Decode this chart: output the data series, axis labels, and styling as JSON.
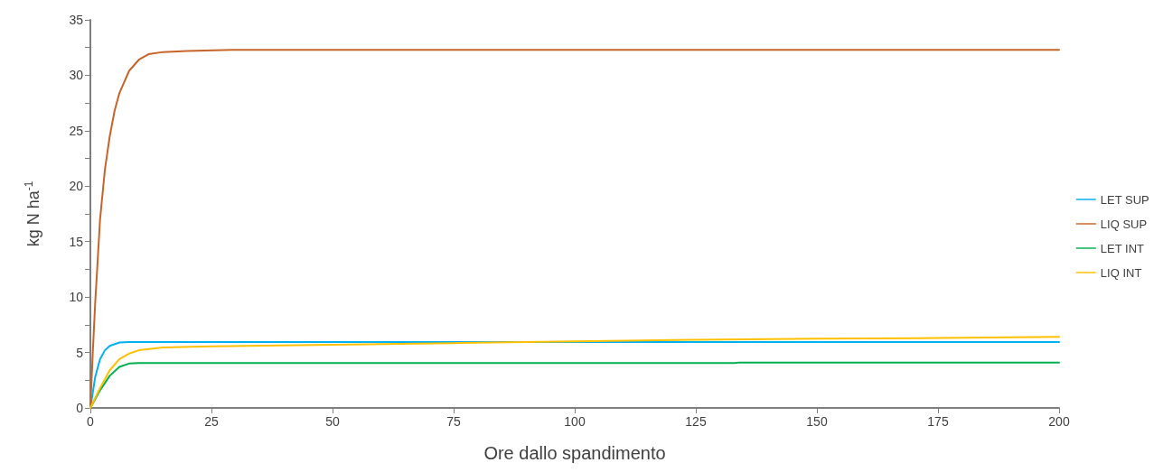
{
  "chart_data": {
    "type": "line",
    "xlabel": "Ore dallo spandimento",
    "ylabel": "kg N ha$^{-1}$",
    "xlim": [
      0,
      200
    ],
    "xticks": [
      0,
      25,
      50,
      75,
      100,
      125,
      150,
      175,
      200
    ],
    "ylim": [
      0,
      35
    ],
    "yticks": [
      0,
      {
        "value": 2.5,
        "label": null
      },
      5,
      {
        "value": 7.5,
        "label": null
      },
      10,
      {
        "value": 12.5,
        "label": null
      },
      15,
      {
        "value": 17.5,
        "label": null
      },
      20,
      {
        "value": 22.5,
        "label": null
      },
      25,
      {
        "value": 27.5,
        "label": null
      },
      30,
      {
        "value": 32.5,
        "label": null
      },
      35
    ],
    "grid": false,
    "legend": "right",
    "marker": "none",
    "line_style": "solid",
    "series": [
      {
        "name": "LET SUP",
        "color": "#00b0f0",
        "x": [
          0,
          1,
          2,
          3,
          4,
          6,
          8,
          200
        ],
        "values": [
          0,
          2.8,
          4.4,
          5.2,
          5.6,
          5.9,
          5.95,
          5.95
        ]
      },
      {
        "name": "LIQ SUP",
        "color": "#c8642a",
        "x": [
          0,
          0.5,
          1,
          2,
          3,
          4,
          5,
          6,
          8,
          10,
          12,
          15,
          20,
          30,
          200
        ],
        "values": [
          0,
          5,
          9.5,
          17,
          21.5,
          24.5,
          26.8,
          28.4,
          30.4,
          31.4,
          31.9,
          32.1,
          32.2,
          32.3,
          32.3
        ]
      },
      {
        "name": "LET INT",
        "color": "#00b050",
        "x": [
          0,
          2,
          4,
          6,
          8,
          10,
          133,
          134,
          200
        ],
        "values": [
          0,
          1.6,
          2.9,
          3.7,
          4,
          4.05,
          4.05,
          4.1,
          4.1
        ]
      },
      {
        "name": "LIQ INT",
        "color": "#ffc000",
        "x": [
          0,
          2,
          4,
          6,
          8,
          10,
          15,
          25,
          50,
          75,
          100,
          125,
          150,
          175,
          200
        ],
        "values": [
          0,
          1.8,
          3.4,
          4.4,
          4.9,
          5.2,
          5.45,
          5.55,
          5.7,
          5.85,
          6,
          6.15,
          6.25,
          6.3,
          6.4
        ]
      }
    ]
  }
}
